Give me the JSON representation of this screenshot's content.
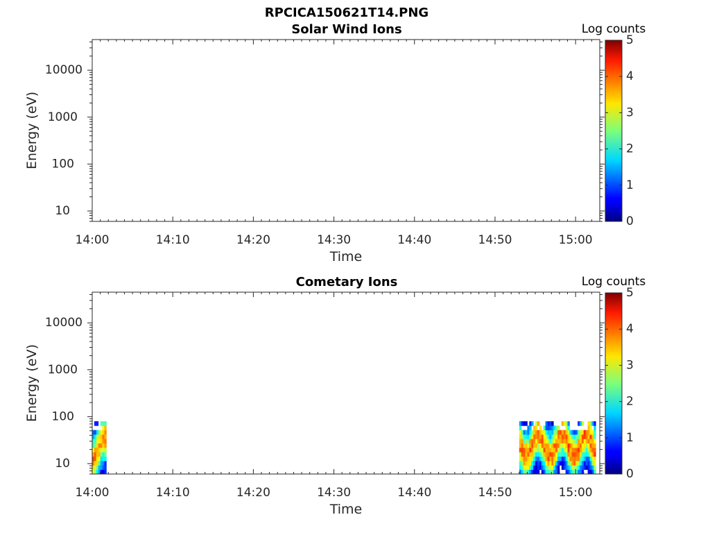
{
  "figure": {
    "title": "RPCICA150621T14.PNG"
  },
  "chart_data": [
    {
      "type": "heatmap",
      "title": "Solar Wind Ions",
      "xlabel": "Time",
      "ylabel": "Energy (eV)",
      "x_scale": "time",
      "y_scale": "log",
      "xlim": [
        "14:00",
        "15:03"
      ],
      "ylim": [
        6,
        45000
      ],
      "xticks": [
        "14:00",
        "14:10",
        "14:20",
        "14:30",
        "14:40",
        "14:50",
        "15:00"
      ],
      "yticks": [
        "10",
        "100",
        "1000",
        "10000"
      ],
      "colorbar": {
        "label": "Log counts",
        "range": [
          0,
          5
        ],
        "ticks": [
          "0",
          "1",
          "2",
          "3",
          "4",
          "5"
        ],
        "colormap": "jet"
      },
      "blocks": []
    },
    {
      "type": "heatmap",
      "title": "Cometary Ions",
      "xlabel": "Time",
      "ylabel": "Energy (eV)",
      "x_scale": "time",
      "y_scale": "log",
      "xlim": [
        "14:00",
        "15:03"
      ],
      "ylim": [
        6,
        45000
      ],
      "xticks": [
        "14:00",
        "14:10",
        "14:20",
        "14:30",
        "14:40",
        "14:50",
        "15:00"
      ],
      "yticks": [
        "10",
        "100",
        "1000",
        "10000"
      ],
      "colorbar": {
        "label": "Log counts",
        "range": [
          0,
          5
        ],
        "ticks": [
          "0",
          "1",
          "2",
          "3",
          "4",
          "5"
        ],
        "colormap": "jet"
      },
      "blocks": [
        {
          "t_start": "14:00",
          "t_end": "14:01:45",
          "energy_range_eV": [
            6,
            80
          ],
          "peak_energy_eV": 20,
          "peak_log_counts": 3.7
        },
        {
          "t_start": "14:53",
          "t_end": "15:02:30",
          "energy_range_eV": [
            6,
            80
          ],
          "peak_energy_eV": 25,
          "peak_log_counts": 3.8
        }
      ]
    }
  ]
}
